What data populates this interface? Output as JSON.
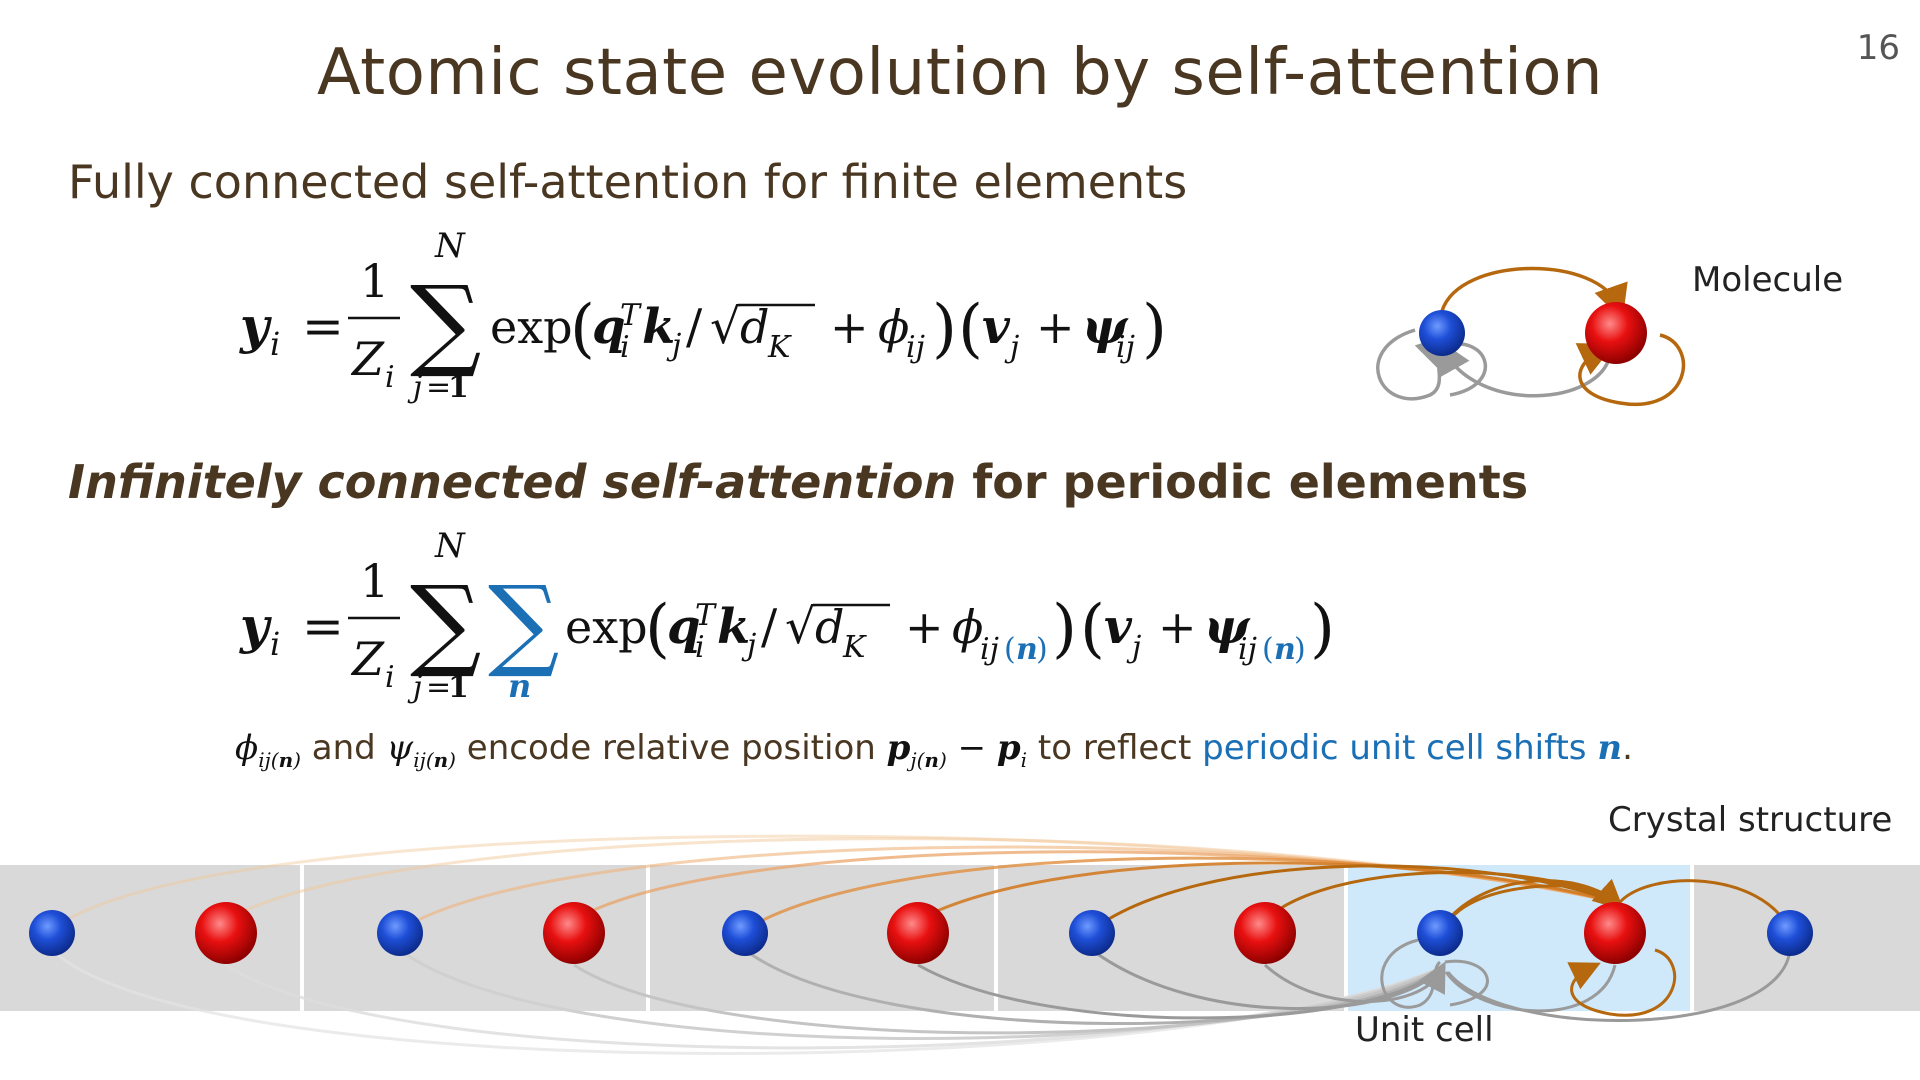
{
  "slide": {
    "title": "Atomic state evolution by self-attention",
    "page_number": "16"
  },
  "section1": {
    "heading": "Fully connected self-attention for finite elements",
    "diagram_label": "Molecule"
  },
  "section2": {
    "heading_italic": "Infinitely connected self-attention",
    "heading_rest": " for periodic elements"
  },
  "note": {
    "t1": " and ",
    "t2": " encode relative position ",
    "t3": " to reflect ",
    "t4": "periodic unit cell shifts ",
    "t5": "."
  },
  "crystal": {
    "label": "Crystal structure",
    "unit_cell_label": "Unit cell"
  },
  "colors": {
    "title": "#4a3722",
    "accent_blue": "#1a6fb5",
    "atom_blue": "#1f4fd8",
    "atom_red": "#e81010",
    "edge_orange": "#b5680e",
    "edge_gray": "#9a9a9a",
    "cell_gray": "#d9d9d9",
    "cell_highlight": "#cfe9fb"
  }
}
